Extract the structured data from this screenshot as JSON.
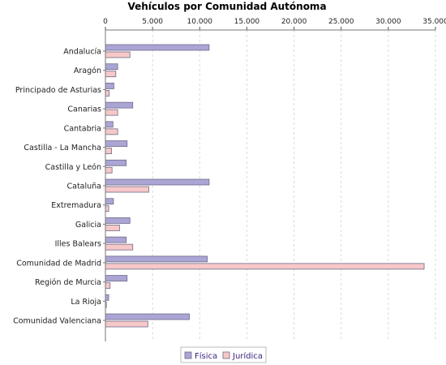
{
  "chart_data": {
    "type": "bar",
    "orientation": "horizontal",
    "title": "Vehículos por Comunidad Autónoma",
    "xlim": [
      0,
      35000
    ],
    "x_ticks": [
      0,
      5000,
      10000,
      15000,
      20000,
      25000,
      30000,
      35000
    ],
    "x_tick_labels": [
      "0",
      "5.000",
      "10.000",
      "15.000",
      "20.000",
      "25.000",
      "30.000",
      "35.000"
    ],
    "x_axis_position": "top",
    "grid": true,
    "legend_position": "bottom-center",
    "categories": [
      "Andalucía",
      "Aragón",
      "Principado de Asturias",
      "Canarias",
      "Cantabria",
      "Castilla - La Mancha",
      "Castilla y León",
      "Cataluña",
      "Extremadura",
      "Galicia",
      "Illes Balears",
      "Comunidad de Madrid",
      "Región de Murcia",
      "La Rioja",
      "Comunidad Valenciana"
    ],
    "series": [
      {
        "name": "Física",
        "color": "#aaa5d4",
        "values": [
          11000,
          1300,
          900,
          2900,
          800,
          2300,
          2200,
          11000,
          850,
          2600,
          2200,
          10800,
          2300,
          350,
          8900
        ]
      },
      {
        "name": "Jurídica",
        "color": "#f7c8c8",
        "values": [
          2600,
          1100,
          400,
          1300,
          1300,
          650,
          700,
          4600,
          350,
          1500,
          2900,
          33800,
          500,
          100,
          4500
        ]
      }
    ]
  }
}
